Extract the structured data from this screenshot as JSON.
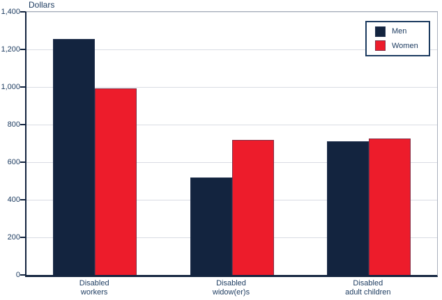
{
  "chart_data": {
    "type": "bar",
    "title": "",
    "ylabel": "Dollars",
    "xlabel": "",
    "categories": [
      "Disabled workers",
      "Disabled widow(er)s",
      "Disabled adult children"
    ],
    "series": [
      {
        "name": "Men",
        "color": "#13243F",
        "values": [
          1255,
          520,
          712
        ]
      },
      {
        "name": "Women",
        "color": "#ED1C2B",
        "values": [
          993,
          720,
          725
        ]
      }
    ],
    "ylim": [
      0,
      1400
    ],
    "ytick_step": 200,
    "ytick_labels": [
      "0",
      "200",
      "400",
      "600",
      "800",
      "1,000",
      "1,200",
      "1,400"
    ],
    "grid": true,
    "legend_position": "top-right"
  },
  "colors": {
    "men_bar": "#13243F",
    "women_bar": "#ED1C2B",
    "axis": "#13243F",
    "gridline": "#D9DCE3",
    "plot_border": "#A9AFBC",
    "text": "#1B3A5F",
    "background": "#FFFFFF"
  }
}
